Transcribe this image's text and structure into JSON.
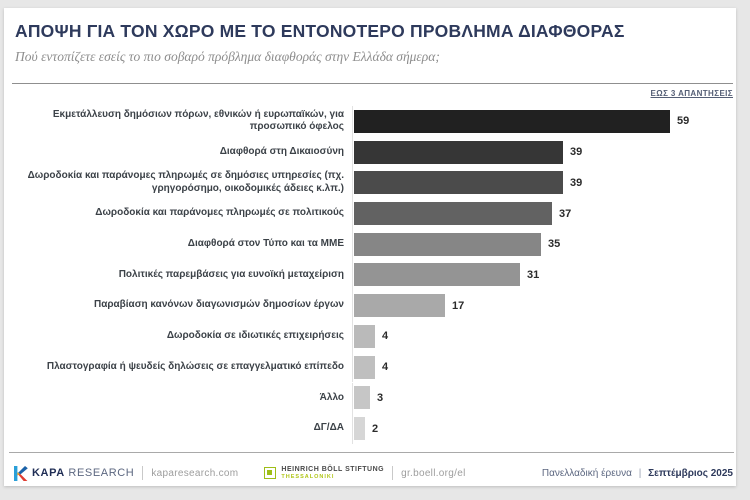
{
  "chart_data": {
    "type": "bar",
    "orientation": "horizontal",
    "title": "ΑΠΟΨΗ ΓΙΑ ΤΟΝ ΧΩΡΟ ΜΕ ΤΟ ΕΝΤΟΝΟΤΕΡΟ ΠΡΟΒΛΗΜΑ ΔΙΑΦΘΟΡΑΣ",
    "subtitle": "Πού εντοπίζετε εσείς το πιο σοβαρό πρόβλημα διαφθοράς στην Ελλάδα σήμερα;",
    "annotation": "ΕΩΣ 3 ΑΠΑΝΤΗΣΕΙΣ",
    "categories": [
      "Εκμετάλλευση δημόσιων πόρων, εθνικών ή ευρωπαϊκών, για προσωπικό όφελος",
      "Διαφθορά στη Δικαιοσύνη",
      "Δωροδοκία και παράνομες πληρωμές σε δημόσιες υπηρεσίες (πχ. γρηγορόσημο, οικοδομικές άδειες κ.λπ.)",
      "Δωροδοκία και παράνομες πληρωμές σε πολιτικούς",
      "Διαφθορά στον Τύπο και τα ΜΜΕ",
      "Πολιτικές παρεμβάσεις για ευνοϊκή μεταχείριση",
      "Παραβίαση κανόνων διαγωνισμών δημοσίων έργων",
      "Δωροδοκία σε ιδιωτικές επιχειρήσεις",
      "Πλαστογραφία ή ψευδείς δηλώσεις σε επαγγελματικό επίπεδο",
      "Άλλο",
      "ΔΓ/ΔΑ"
    ],
    "values": [
      59,
      39,
      39,
      37,
      35,
      31,
      17,
      4,
      4,
      3,
      2
    ],
    "bar_colors": [
      "#212121",
      "#363636",
      "#4b4b4b",
      "#626262",
      "#868686",
      "#949494",
      "#a9a9a9",
      "#bababa",
      "#bfbfbf",
      "#c6c6c6",
      "#d6d6d6"
    ],
    "value_labels_shown": true,
    "xlim": [
      0,
      62
    ],
    "grid": false,
    "legend": false
  },
  "footer": {
    "kapa_brand_bold": "KAPA",
    "kapa_brand_light": "RESEARCH",
    "kapa_site": "kaparesearch.com",
    "boell_name": "HEINRICH BÖLL STIFTUNG",
    "boell_sub": "THESSALONIKI",
    "boell_site": "gr.boell.org/el",
    "survey_type": "Πανελλαδική έρευνα",
    "survey_separator": "|",
    "survey_date": "Σεπτέμβριος 2025"
  },
  "icons": {
    "kapa_logo_colors": [
      "#2a9fd8",
      "#1b62a8",
      "#f5a81c",
      "#e03c31"
    ],
    "boell_green": "#9ebe18"
  }
}
